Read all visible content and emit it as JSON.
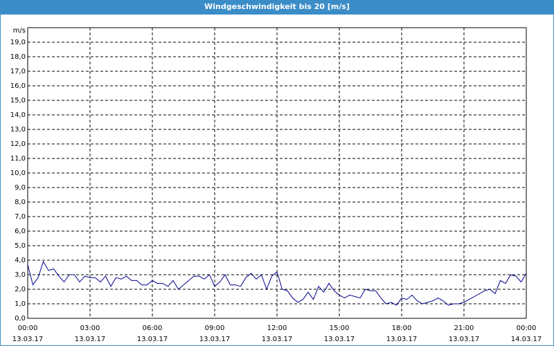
{
  "chart_data": {
    "type": "line",
    "title": "Windgeschwindigkeit bis 20 [m/s]",
    "y_unit": "m/s",
    "grid": true,
    "ylim": [
      0,
      20
    ],
    "yticks": [
      {
        "value": 0,
        "label": "0,0"
      },
      {
        "value": 1,
        "label": "1,0"
      },
      {
        "value": 2,
        "label": "2,0"
      },
      {
        "value": 3,
        "label": "3,0"
      },
      {
        "value": 4,
        "label": "4,0"
      },
      {
        "value": 5,
        "label": "5,0"
      },
      {
        "value": 6,
        "label": "6,0"
      },
      {
        "value": 7,
        "label": "7,0"
      },
      {
        "value": 8,
        "label": "8,0"
      },
      {
        "value": 9,
        "label": "9,0"
      },
      {
        "value": 10,
        "label": "10,0"
      },
      {
        "value": 11,
        "label": "11,0"
      },
      {
        "value": 12,
        "label": "12,0"
      },
      {
        "value": 13,
        "label": "13,0"
      },
      {
        "value": 14,
        "label": "14,0"
      },
      {
        "value": 15,
        "label": "15,0"
      },
      {
        "value": 16,
        "label": "16,0"
      },
      {
        "value": 17,
        "label": "17,0"
      },
      {
        "value": 18,
        "label": "18,0"
      },
      {
        "value": 19,
        "label": "19,0"
      }
    ],
    "xlim": [
      0,
      24
    ],
    "xticks": [
      {
        "value": 0,
        "label": "00:00",
        "date": "13.03.17"
      },
      {
        "value": 3,
        "label": "03:00",
        "date": "13.03.17"
      },
      {
        "value": 6,
        "label": "06:00",
        "date": "13.03.17"
      },
      {
        "value": 9,
        "label": "09:00",
        "date": "13.03.17"
      },
      {
        "value": 12,
        "label": "12:00",
        "date": "13.03.17"
      },
      {
        "value": 15,
        "label": "15:00",
        "date": "13.03.17"
      },
      {
        "value": 18,
        "label": "18:00",
        "date": "13.03.17"
      },
      {
        "value": 21,
        "label": "21:00",
        "date": "13.03.17"
      },
      {
        "value": 24,
        "label": "00:00",
        "date": "14.03.17"
      }
    ],
    "x": [
      0,
      0.25,
      0.5,
      0.75,
      1,
      1.25,
      1.5,
      1.75,
      2,
      2.25,
      2.5,
      2.75,
      3,
      3.25,
      3.5,
      3.75,
      4,
      4.25,
      4.5,
      4.75,
      5,
      5.25,
      5.5,
      5.75,
      6,
      6.25,
      6.5,
      6.75,
      7,
      7.25,
      7.5,
      7.75,
      8,
      8.25,
      8.5,
      8.75,
      9,
      9.25,
      9.5,
      9.75,
      10,
      10.25,
      10.5,
      10.75,
      11,
      11.25,
      11.5,
      11.75,
      12,
      12.25,
      12.5,
      12.75,
      13,
      13.25,
      13.5,
      13.75,
      14,
      14.25,
      14.5,
      14.75,
      15,
      15.25,
      15.5,
      15.75,
      16,
      16.25,
      16.5,
      16.75,
      17,
      17.25,
      17.5,
      17.75,
      18,
      18.25,
      18.5,
      18.75,
      19,
      19.25,
      19.5,
      19.75,
      20,
      20.25,
      20.5,
      20.75,
      21,
      21.25,
      21.5,
      21.75,
      22,
      22.25,
      22.5,
      22.75,
      23,
      23.25,
      23.5,
      23.75,
      24
    ],
    "series": [
      {
        "color": "#00008b",
        "values": [
          3.7,
          2.3,
          2.8,
          3.9,
          3.3,
          3.4,
          2.9,
          2.5,
          3.0,
          3.0,
          2.5,
          2.9,
          2.8,
          2.8,
          2.5,
          2.9,
          2.2,
          2.8,
          2.7,
          2.9,
          2.6,
          2.6,
          2.3,
          2.3,
          2.6,
          2.4,
          2.4,
          2.2,
          2.6,
          2.0,
          2.3,
          2.6,
          2.9,
          2.9,
          2.7,
          3.0,
          2.2,
          2.5,
          3.0,
          2.3,
          2.3,
          2.2,
          2.8,
          3.1,
          2.7,
          3.0,
          2.0,
          2.9,
          3.2,
          2.0,
          1.9,
          1.4,
          1.1,
          1.3,
          1.8,
          1.3,
          2.2,
          1.8,
          2.4,
          1.9,
          1.6,
          1.4,
          1.6,
          1.5,
          1.4,
          2.0,
          1.9,
          1.9,
          1.4,
          1.0,
          1.1,
          0.9,
          1.4,
          1.3,
          1.6,
          1.2,
          1.0,
          1.1,
          1.2,
          1.4,
          1.2,
          0.9,
          1.0,
          1.0,
          1.1,
          1.3,
          1.5,
          1.7,
          1.9,
          2.0,
          1.7,
          2.6,
          2.4,
          3.0,
          2.9,
          2.5,
          3.1
        ]
      }
    ]
  }
}
